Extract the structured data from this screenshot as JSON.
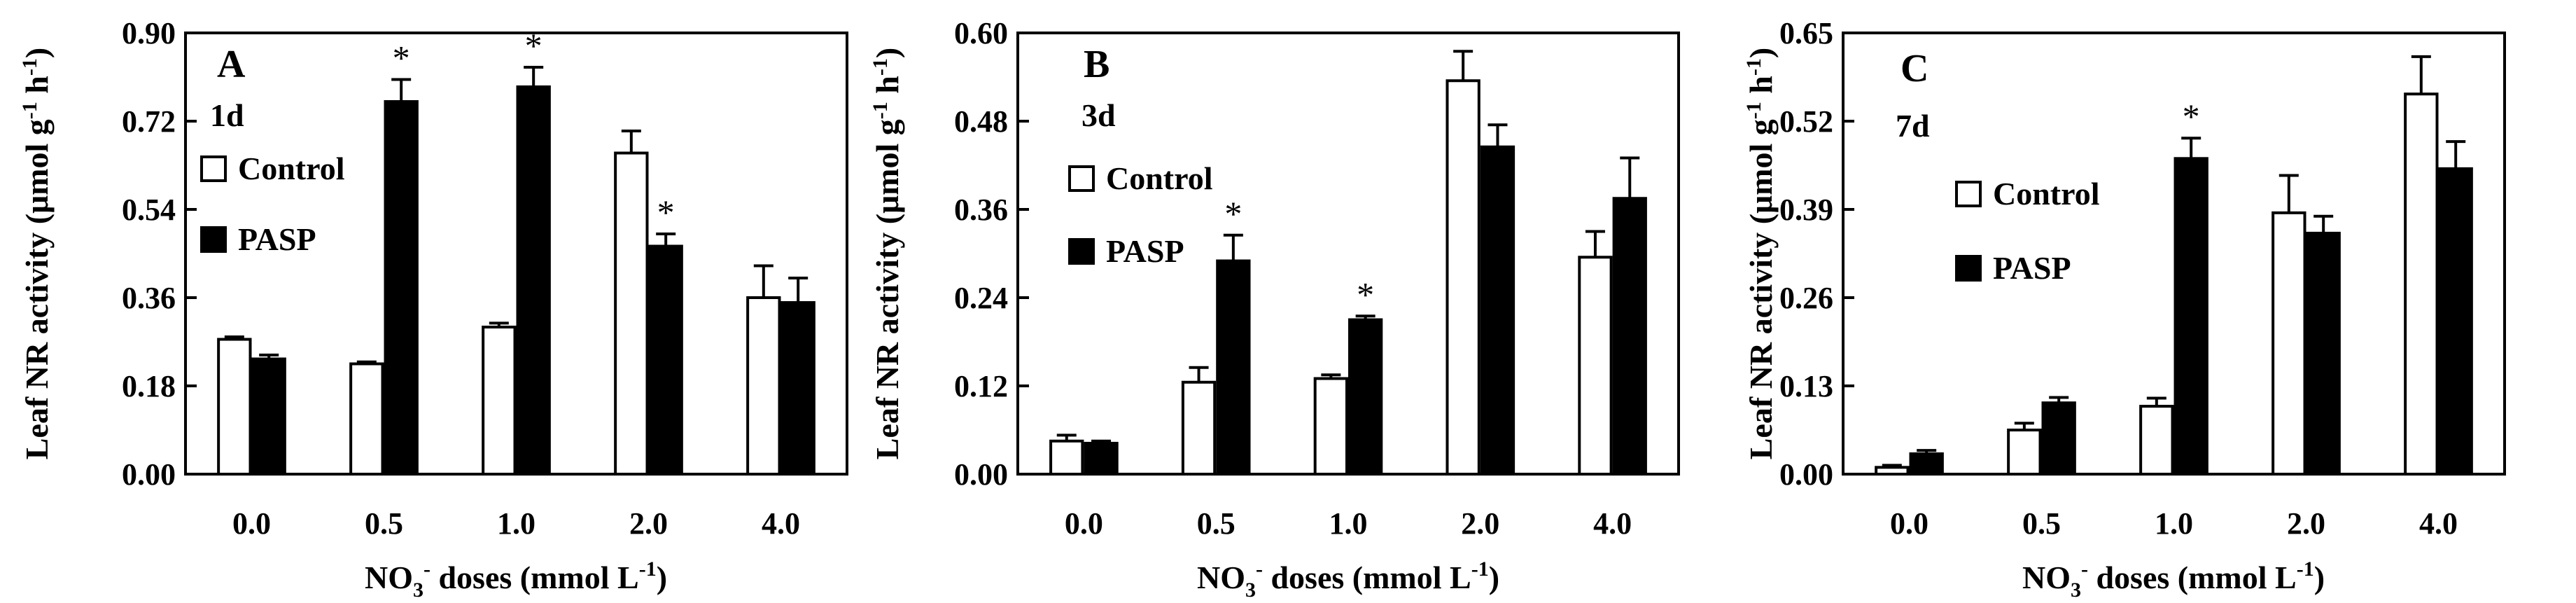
{
  "figure": {
    "ylabel": "Leaf NR activity (μmol g",
    "ylabel_sup1": "-1",
    "ylabel_mid": " h",
    "ylabel_sup2": "-1",
    "ylabel_end": ")",
    "xlabel": "NO",
    "xlabel_sub": "3",
    "xlabel_sup": "-",
    "xlabel_mid": " doses (mmol L",
    "xlabel_sup2": "-1",
    "xlabel_end": ")",
    "legend": [
      "Control",
      "PASP"
    ],
    "colors": {
      "control": "#ffffff",
      "pasp": "#000000",
      "axis": "#000000"
    }
  },
  "chart_data": [
    {
      "type": "bar",
      "panel": "A",
      "day": "1d",
      "categories": [
        "0.0",
        "0.5",
        "1.0",
        "2.0",
        "4.0"
      ],
      "series": [
        {
          "name": "Control",
          "values": [
            0.275,
            0.225,
            0.3,
            0.655,
            0.36
          ],
          "errors": [
            0.005,
            0.004,
            0.008,
            0.045,
            0.065
          ]
        },
        {
          "name": "PASP",
          "values": [
            0.235,
            0.76,
            0.79,
            0.465,
            0.35
          ],
          "errors": [
            0.008,
            0.045,
            0.04,
            0.025,
            0.05
          ]
        }
      ],
      "significance": [
        {
          "category": "0.5",
          "series": "PASP",
          "label": "*"
        },
        {
          "category": "1.0",
          "series": "PASP",
          "label": "*"
        },
        {
          "category": "2.0",
          "series": "PASP",
          "label": "*"
        }
      ],
      "ylim": [
        0,
        0.9
      ],
      "yticks": [
        "0.00",
        "0.18",
        "0.36",
        "0.54",
        "0.72",
        "0.90"
      ]
    },
    {
      "type": "bar",
      "panel": "B",
      "day": "3d",
      "categories": [
        "0.0",
        "0.5",
        "1.0",
        "2.0",
        "4.0"
      ],
      "series": [
        {
          "name": "Control",
          "values": [
            0.045,
            0.125,
            0.13,
            0.535,
            0.295
          ],
          "errors": [
            0.008,
            0.02,
            0.005,
            0.04,
            0.035
          ]
        },
        {
          "name": "PASP",
          "values": [
            0.042,
            0.29,
            0.21,
            0.445,
            0.375
          ],
          "errors": [
            0.003,
            0.035,
            0.005,
            0.03,
            0.055
          ]
        }
      ],
      "significance": [
        {
          "category": "0.5",
          "series": "PASP",
          "label": "*"
        },
        {
          "category": "1.0",
          "series": "PASP",
          "label": "*"
        }
      ],
      "ylim": [
        0,
        0.6
      ],
      "yticks": [
        "0.00",
        "0.12",
        "0.24",
        "0.36",
        "0.48",
        "0.60"
      ]
    },
    {
      "type": "bar",
      "panel": "C",
      "day": "7d",
      "categories": [
        "0.0",
        "0.5",
        "1.0",
        "2.0",
        "4.0"
      ],
      "series": [
        {
          "name": "Control",
          "values": [
            0.01,
            0.065,
            0.1,
            0.385,
            0.56
          ],
          "errors": [
            0.003,
            0.01,
            0.012,
            0.055,
            0.055
          ]
        },
        {
          "name": "PASP",
          "values": [
            0.03,
            0.105,
            0.465,
            0.355,
            0.45
          ],
          "errors": [
            0.005,
            0.008,
            0.03,
            0.025,
            0.04
          ]
        }
      ],
      "significance": [
        {
          "category": "1.0",
          "series": "PASP",
          "label": "*"
        }
      ],
      "ylim": [
        0,
        0.65
      ],
      "yticks": [
        "0.00",
        "0.13",
        "0.26",
        "0.39",
        "0.52",
        "0.65"
      ]
    }
  ]
}
